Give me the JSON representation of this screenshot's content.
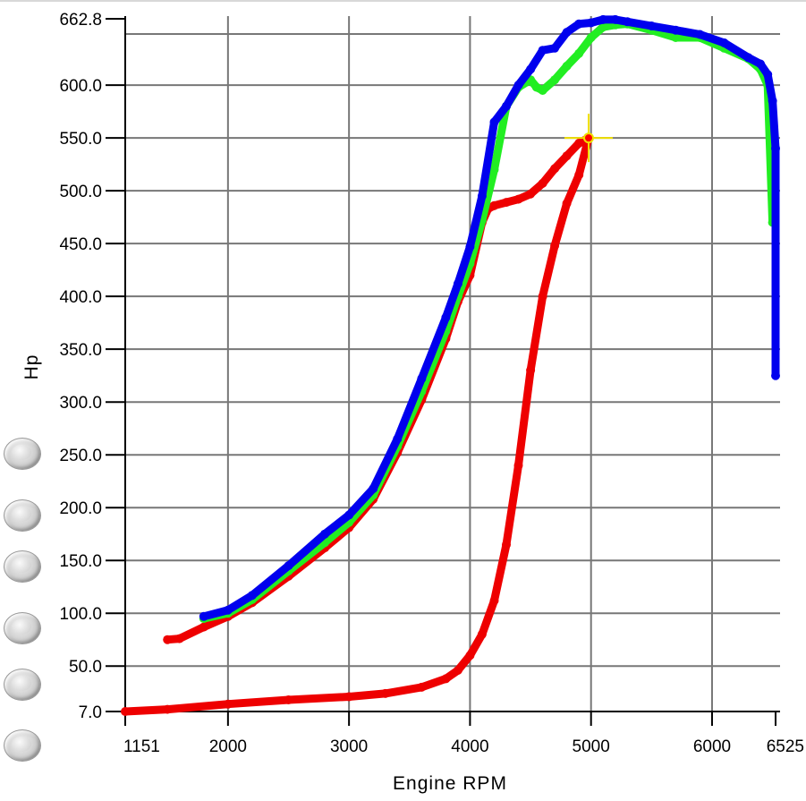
{
  "chart_data": {
    "type": "line",
    "xlabel": "Engine RPM",
    "ylabel": "Hp",
    "xlim": [
      1151,
      6525
    ],
    "ylim": [
      7.0,
      662.8
    ],
    "x_ticks": [
      "1151",
      "2000",
      "3000",
      "4000",
      "5000",
      "6000",
      "6525"
    ],
    "y_ticks": [
      "7.0",
      "50.0",
      "100.0",
      "150.0",
      "200.0",
      "250.0",
      "300.0",
      "350.0",
      "400.0",
      "450.0",
      "500.0",
      "550.0",
      "600.0",
      "662.8"
    ],
    "grid": true,
    "series": [
      {
        "color": "#ee0000",
        "x": [
          1151,
          1500,
          2000,
          2500,
          3000,
          3300,
          3600,
          3800,
          3900,
          4000,
          4100,
          4200,
          4300,
          4400,
          4500,
          4600,
          4700,
          4800,
          4900,
          4980
        ],
        "y": [
          7,
          9,
          14,
          18,
          21,
          24,
          30,
          38,
          46,
          60,
          80,
          112,
          165,
          240,
          330,
          400,
          448,
          488,
          515,
          550
        ]
      },
      {
        "color": "#ee0000",
        "x": [
          1500,
          1600,
          1800,
          2000,
          2200,
          2500,
          2800,
          3000,
          3200,
          3400,
          3600,
          3800,
          3900,
          4000,
          4100,
          4150,
          4200,
          4300,
          4400,
          4500,
          4600,
          4700,
          4800,
          4900,
          4980
        ],
        "y": [
          75,
          76,
          87,
          97,
          110,
          135,
          162,
          181,
          208,
          252,
          302,
          360,
          395,
          420,
          470,
          483,
          486,
          489,
          492,
          497,
          507,
          521,
          533,
          545,
          550
        ]
      },
      {
        "color": "#22ee22",
        "x": [
          1800,
          2000,
          2200,
          2500,
          2800,
          3000,
          3200,
          3400,
          3600,
          3800,
          3900,
          4000,
          4100,
          4200,
          4300,
          4400,
          4500,
          4550,
          4600,
          4700,
          4800,
          4900,
          5000,
          5100,
          5200,
          5300,
          5500,
          5700,
          5900,
          6100,
          6300,
          6400,
          6460,
          6500
        ],
        "y": [
          95,
          100,
          113,
          140,
          167,
          186,
          212,
          258,
          310,
          367,
          400,
          431,
          472,
          520,
          580,
          598,
          605,
          598,
          595,
          605,
          618,
          630,
          645,
          655,
          657,
          658,
          652,
          645,
          645,
          635,
          625,
          615,
          600,
          470
        ]
      },
      {
        "color": "#0000ee",
        "x": [
          1800,
          2000,
          2200,
          2500,
          2800,
          3000,
          3200,
          3400,
          3600,
          3800,
          3900,
          4000,
          4100,
          4200,
          4300,
          4400,
          4500,
          4600,
          4700,
          4800,
          4900,
          5000,
          5100,
          5200,
          5300,
          5500,
          5700,
          5900,
          6100,
          6300,
          6400,
          6460,
          6500,
          6525,
          6525
        ],
        "y": [
          97,
          103,
          117,
          145,
          175,
          193,
          218,
          265,
          322,
          380,
          412,
          447,
          495,
          565,
          580,
          600,
          615,
          633,
          635,
          650,
          658,
          659,
          662,
          662,
          660,
          656,
          652,
          648,
          640,
          626,
          620,
          610,
          585,
          540,
          325
        ]
      }
    ]
  }
}
